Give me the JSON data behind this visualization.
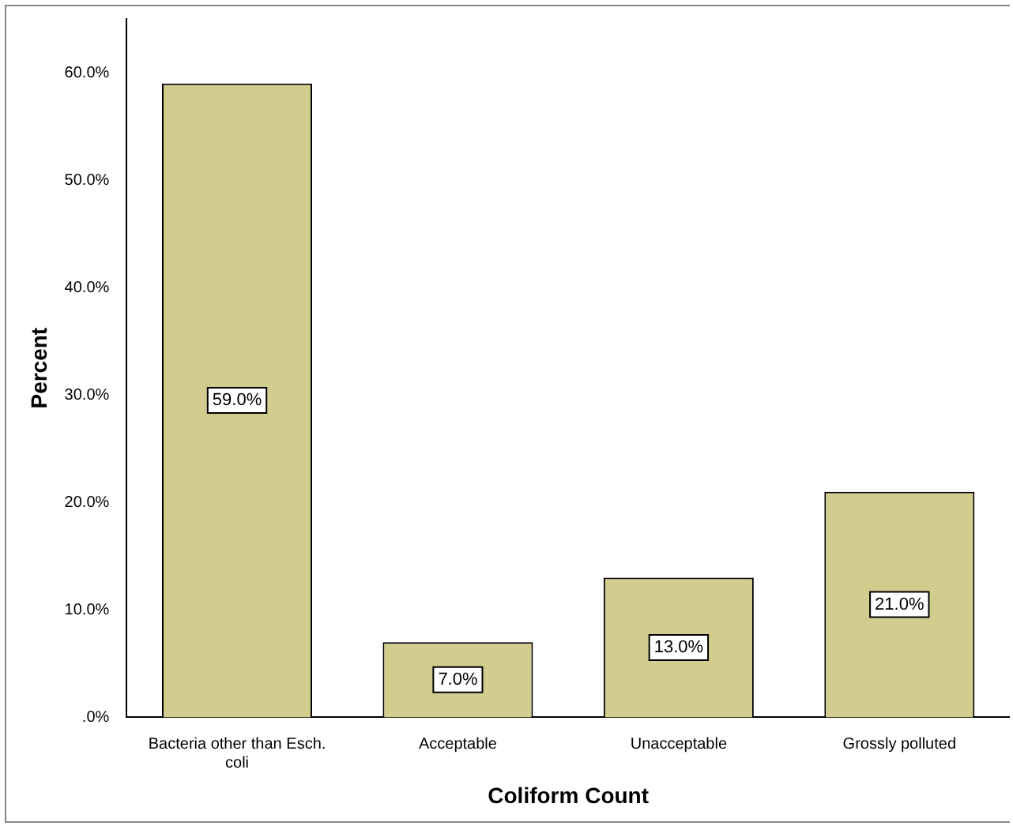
{
  "chart_data": {
    "type": "bar",
    "xlabel": "Coliform Count",
    "ylabel": "Percent",
    "categories": [
      "Bacteria other than Esch. coli",
      "Acceptable",
      "Unacceptable",
      "Grossly polluted"
    ],
    "values": [
      59,
      7,
      13,
      21
    ],
    "value_labels": [
      "59.0%",
      "7.0%",
      "13.0%",
      "21.0%"
    ],
    "color": "#d2cc8f",
    "ylim": [
      0,
      65
    ],
    "yticks": [
      {
        "value": 0,
        "label": ".0%"
      },
      {
        "value": 10,
        "label": "10.0%"
      },
      {
        "value": 20,
        "label": "20.0%"
      },
      {
        "value": 30,
        "label": "30.0%"
      },
      {
        "value": 40,
        "label": "40.0%"
      },
      {
        "value": 50,
        "label": "50.0%"
      },
      {
        "value": 60,
        "label": "60.0%"
      }
    ],
    "grid": false,
    "legend": false
  }
}
